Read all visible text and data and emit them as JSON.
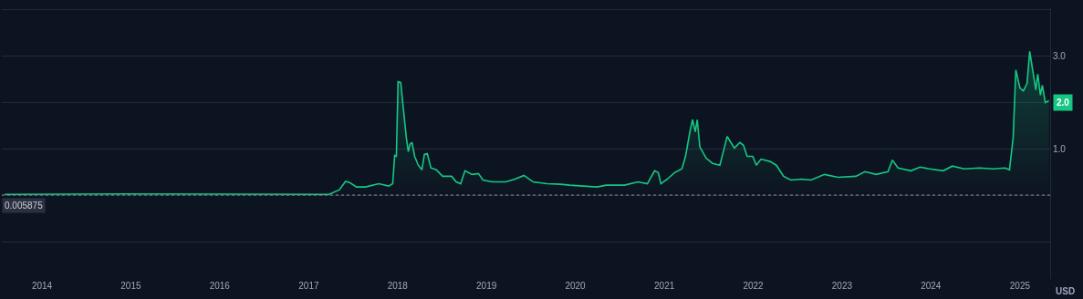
{
  "chart_data": {
    "type": "area",
    "x": [
      "2013-08",
      "2014-12",
      "2017-03-25",
      "2017-05-07",
      "2017-06-01",
      "2017-06-20",
      "2017-07-16",
      "2017-08-22",
      "2017-10-16",
      "2017-11-25",
      "2017-12-12",
      "2017-12-20",
      "2017-12-27",
      "2018-01-03",
      "2018-01-14",
      "2018-01-22",
      "2018-02-06",
      "2018-02-14",
      "2018-02-21",
      "2018-03-01",
      "2018-03-12",
      "2018-03-27",
      "2018-04-11",
      "2018-04-21",
      "2018-05-03",
      "2018-05-18",
      "2018-06-09",
      "2018-07-05",
      "2018-08-11",
      "2018-08-30",
      "2018-09-17",
      "2018-10-05",
      "2018-11-03",
      "2018-11-29",
      "2018-12-18",
      "2019-01-25",
      "2019-03-21",
      "2019-04-28",
      "2019-06-04",
      "2019-07-12",
      "2019-09-07",
      "2019-11-02",
      "2019-12-09",
      "2020-02-03",
      "2020-03-31",
      "2020-05-07",
      "2020-07-21",
      "2020-09-15",
      "2020-10-23",
      "2020-11-22",
      "2020-12-07",
      "2020-12-18",
      "2021-01-13",
      "2021-02-12",
      "2021-03-14",
      "2021-03-29",
      "2021-04-16",
      "2021-04-27",
      "2021-05-08",
      "2021-05-16",
      "2021-05-27",
      "2021-06-22",
      "2021-07-18",
      "2021-08-17",
      "2021-09-05",
      "2021-09-16",
      "2021-10-01",
      "2021-10-16",
      "2021-11-07",
      "2021-11-22",
      "2021-12-07",
      "2021-12-30",
      "2022-01-14",
      "2022-02-02",
      "2022-03-11",
      "2022-04-06",
      "2022-05-06",
      "2022-06-05",
      "2022-07-19",
      "2022-08-26",
      "2022-10-21",
      "2022-12-16",
      "2023-02-27",
      "2023-04-05",
      "2023-05-21",
      "2023-07-09",
      "2023-07-27",
      "2023-08-19",
      "2023-10-11",
      "2023-11-18",
      "2023-12-26",
      "2024-02-21",
      "2024-03-29",
      "2024-05-17",
      "2024-07-19",
      "2024-09-13",
      "2024-11-01",
      "2024-11-19",
      "2024-12-04",
      "2024-12-15",
      "2025-01-01",
      "2025-01-15",
      "2025-01-30",
      "2025-02-10",
      "2025-02-25",
      "2025-03-07",
      "2025-03-15",
      "2025-03-26",
      "2025-04-03",
      "2025-04-15",
      "2025-04-30"
    ],
    "series": [
      {
        "color": "#16c784",
        "values": [
          0.02,
          0.03,
          0.02,
          0.12,
          0.3,
          0.27,
          0.18,
          0.18,
          0.25,
          0.2,
          0.25,
          0.86,
          0.84,
          2.45,
          2.43,
          2.0,
          1.24,
          0.94,
          1.1,
          1.14,
          0.84,
          0.65,
          0.55,
          0.88,
          0.9,
          0.59,
          0.55,
          0.41,
          0.41,
          0.29,
          0.25,
          0.53,
          0.45,
          0.47,
          0.33,
          0.29,
          0.29,
          0.35,
          0.43,
          0.29,
          0.25,
          0.24,
          0.22,
          0.2,
          0.18,
          0.22,
          0.22,
          0.29,
          0.25,
          0.53,
          0.49,
          0.25,
          0.35,
          0.49,
          0.57,
          0.84,
          1.37,
          1.63,
          1.37,
          1.63,
          1.04,
          0.8,
          0.69,
          0.65,
          1.04,
          1.27,
          1.14,
          1.02,
          1.14,
          1.08,
          0.84,
          0.84,
          0.65,
          0.78,
          0.73,
          0.65,
          0.41,
          0.33,
          0.35,
          0.33,
          0.45,
          0.39,
          0.41,
          0.51,
          0.45,
          0.51,
          0.76,
          0.59,
          0.53,
          0.61,
          0.57,
          0.53,
          0.63,
          0.57,
          0.59,
          0.57,
          0.59,
          0.55,
          1.24,
          2.7,
          2.31,
          2.25,
          2.41,
          3.1,
          2.61,
          2.27,
          2.61,
          2.16,
          2.37,
          2.0,
          2.04
        ]
      }
    ],
    "xlim": [
      "2013-07-20",
      "2025-05-05"
    ],
    "xticks": [
      {
        "value": "2014-01-01",
        "label": "2014"
      },
      {
        "value": "2015-01-01",
        "label": "2015"
      },
      {
        "value": "2016-01-01",
        "label": "2016"
      },
      {
        "value": "2017-01-01",
        "label": "2017"
      },
      {
        "value": "2018-01-01",
        "label": "2018"
      },
      {
        "value": "2019-01-01",
        "label": "2019"
      },
      {
        "value": "2020-01-01",
        "label": "2020"
      },
      {
        "value": "2021-01-01",
        "label": "2021"
      },
      {
        "value": "2022-01-01",
        "label": "2022"
      },
      {
        "value": "2023-01-01",
        "label": "2023"
      },
      {
        "value": "2024-01-01",
        "label": "2024"
      },
      {
        "value": "2025-01-01",
        "label": "2025"
      }
    ],
    "ylim": [
      -1.8,
      4.05
    ],
    "yticks": [
      {
        "value": 4,
        "label": null
      },
      {
        "value": 3,
        "label": "3.0"
      },
      {
        "value": 2,
        "label": null
      },
      {
        "value": 1,
        "label": "1.0"
      },
      {
        "value": 0,
        "label": null
      },
      {
        "value": -1,
        "label": null
      }
    ],
    "grid": "y",
    "ref_lines": [
      {
        "axis": "y",
        "value": 0.005875,
        "label": "0.005875",
        "color": "#8a8f99",
        "line_style": "dotted"
      }
    ],
    "annotations": [
      {
        "text": "2.0",
        "x": "2025-04-30",
        "y": 2.0
      },
      "USD"
    ],
    "marker": "none"
  }
}
